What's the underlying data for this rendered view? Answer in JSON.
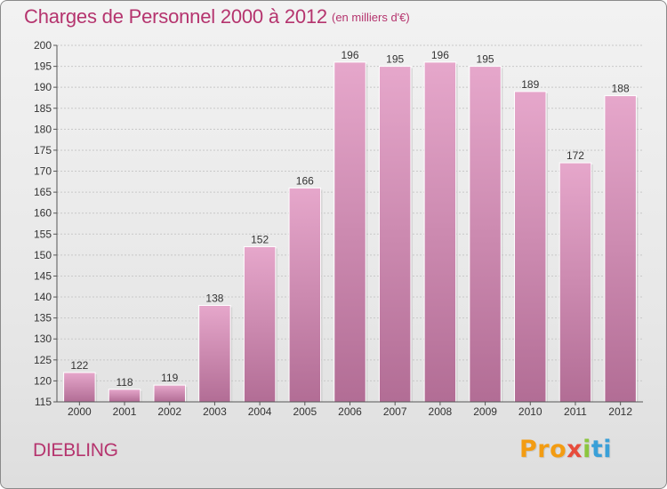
{
  "header": {
    "title": "Charges de Personnel 2000 à 2012",
    "subtitle": "(en milliers d'€)"
  },
  "footer": {
    "commune": "DIEBLING",
    "logo_parts": [
      "Pro",
      "x",
      "i",
      "ti"
    ]
  },
  "colors": {
    "title": "#b5346e",
    "bar_top": "#e6a7cb",
    "bar_bottom": "#b26d95",
    "grid": "#c8c8c8",
    "axis": "#555555",
    "logo_orange": "#f39c12",
    "logo_blue": "#3aa0d8",
    "logo_green": "#8cc63f",
    "logo_red": "#e74c3c"
  },
  "chart_data": {
    "type": "bar",
    "title": "Charges de Personnel 2000 à 2012",
    "subtitle": "(en milliers d'€)",
    "categories": [
      "2000",
      "2001",
      "2002",
      "2003",
      "2004",
      "2005",
      "2006",
      "2007",
      "2008",
      "2009",
      "2010",
      "2011",
      "2012"
    ],
    "values": [
      122,
      118,
      119,
      138,
      152,
      166,
      196,
      195,
      196,
      195,
      189,
      172,
      188
    ],
    "ylim": [
      115,
      200
    ],
    "ytick_step": 5,
    "grid": true,
    "data_labels": true
  }
}
